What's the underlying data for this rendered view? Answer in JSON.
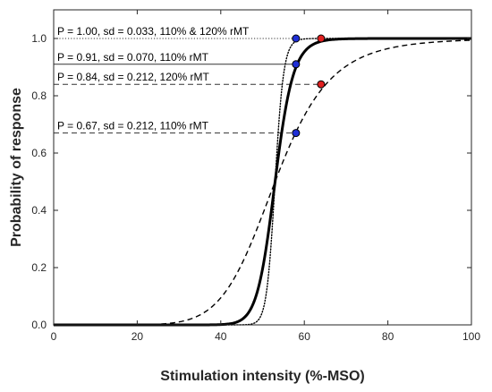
{
  "chart_data": {
    "type": "line",
    "xlabel": "Stimulation intensity (%-MSO)",
    "ylabel": "Probability of response",
    "xlim": [
      0,
      100
    ],
    "ylim": [
      0,
      1.1
    ],
    "xticks": [
      0,
      20,
      40,
      60,
      80,
      100
    ],
    "yticks": [
      0.0,
      0.2,
      0.4,
      0.6,
      0.8,
      1.0
    ],
    "xtick_labels": [
      "0",
      "20",
      "40",
      "60",
      "80",
      "100"
    ],
    "ytick_labels": [
      "0.0",
      "0.2",
      "0.4",
      "0.6",
      "0.8",
      "1.0"
    ],
    "grid": false,
    "series": [
      {
        "style": "dotted",
        "color": "#000000",
        "threshold": 53,
        "sd": 0.033
      },
      {
        "style": "solid",
        "color": "#000000",
        "threshold": 53,
        "sd": 0.07
      },
      {
        "style": "dashed",
        "color": "#000000",
        "threshold": 53,
        "sd": 0.212
      }
    ],
    "points": [
      {
        "x": 58,
        "y": 1.0,
        "color": "#1f2fd6"
      },
      {
        "x": 64,
        "y": 1.0,
        "color": "#e02020"
      },
      {
        "x": 58,
        "y": 0.91,
        "color": "#1f2fd6"
      },
      {
        "x": 64,
        "y": 0.84,
        "color": "#e02020"
      },
      {
        "x": 58,
        "y": 0.67,
        "color": "#1f2fd6"
      }
    ],
    "annotations": [
      {
        "text": "P = 1.00, sd = 0.033, 110% & 120% rMT",
        "y": 1.0,
        "x_end": 58,
        "line_style": "dotted"
      },
      {
        "text": "P = 0.91, sd = 0.070, 110% rMT",
        "y": 0.91,
        "x_end": 58,
        "line_style": "solid"
      },
      {
        "text": "P = 0.84, sd = 0.212, 120% rMT",
        "y": 0.84,
        "x_end": 64,
        "line_style": "dashed"
      },
      {
        "text": "P = 0.67, sd = 0.212, 110% rMT",
        "y": 0.67,
        "x_end": 58,
        "line_style": "dashed"
      }
    ]
  }
}
